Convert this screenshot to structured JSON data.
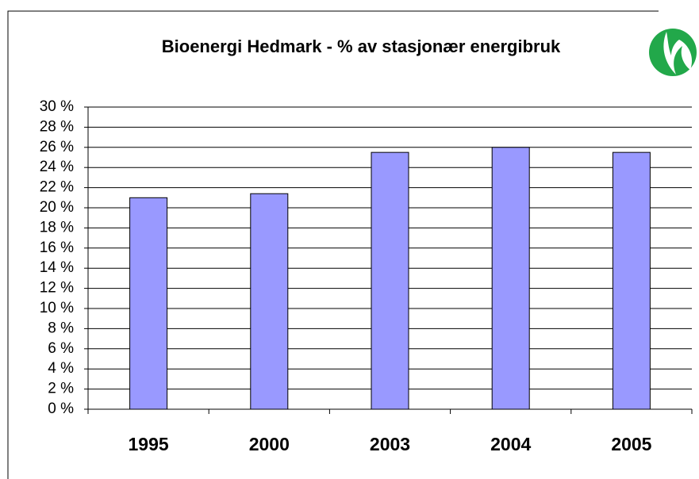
{
  "chart_data": {
    "type": "bar",
    "title": "Bioenergi Hedmark - % av stasjonær  energibruk",
    "categories": [
      "1995",
      "2000",
      "2003",
      "2004",
      "2005"
    ],
    "values": [
      21,
      21.4,
      25.5,
      26,
      25.5
    ],
    "color": "#9999ff",
    "ylim": [
      0,
      30
    ],
    "yticks": [
      {
        "value": 0,
        "label": "0 %"
      },
      {
        "value": 2,
        "label": "2 %"
      },
      {
        "value": 4,
        "label": "4 %"
      },
      {
        "value": 6,
        "label": "6 %"
      },
      {
        "value": 8,
        "label": "8 %"
      },
      {
        "value": 10,
        "label": "10 %"
      },
      {
        "value": 12,
        "label": "12 %"
      },
      {
        "value": 14,
        "label": "14 %"
      },
      {
        "value": 16,
        "label": "16 %"
      },
      {
        "value": 18,
        "label": "18 %"
      },
      {
        "value": 20,
        "label": "20 %"
      },
      {
        "value": 22,
        "label": "22 %"
      },
      {
        "value": 24,
        "label": "24 %"
      },
      {
        "value": 26,
        "label": "26 %"
      },
      {
        "value": 28,
        "label": "28 %"
      },
      {
        "value": 30,
        "label": "30 %"
      }
    ],
    "grid": true
  }
}
